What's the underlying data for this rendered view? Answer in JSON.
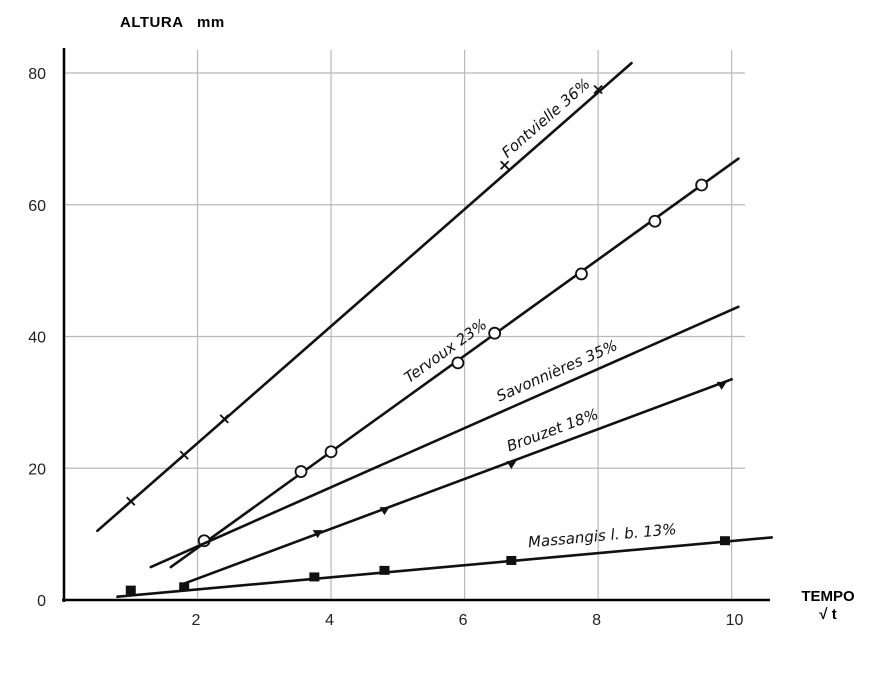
{
  "chart_data": {
    "type": "line",
    "ylabel": "ALTURA   mm",
    "xlabel_line1": "TEMPO",
    "xlabel_line2": "√ t",
    "xlim": [
      0,
      10.3
    ],
    "ylim": [
      0,
      83
    ],
    "x_ticks": [
      "2",
      "4",
      "6",
      "8",
      "10"
    ],
    "y_ticks": [
      "0",
      "20",
      "40",
      "60",
      "80"
    ],
    "grid": true,
    "series": [
      {
        "name": "Fontvielle 36%",
        "marker": "x",
        "line": [
          [
            0.5,
            10.5
          ],
          [
            8.5,
            81.5
          ]
        ],
        "points": [
          [
            1,
            15
          ],
          [
            1.8,
            22
          ],
          [
            2.4,
            27.5
          ],
          [
            6.6,
            66
          ],
          [
            8,
            77.5
          ]
        ]
      },
      {
        "name": "Tervoux 23%",
        "marker": "circle",
        "line": [
          [
            1.6,
            5
          ],
          [
            10.1,
            67
          ]
        ],
        "points": [
          [
            2.1,
            9
          ],
          [
            3.55,
            19.5
          ],
          [
            4,
            22.5
          ],
          [
            5.9,
            36
          ],
          [
            6.45,
            40.5
          ],
          [
            7.75,
            49.5
          ],
          [
            8.85,
            57.5
          ],
          [
            9.55,
            63
          ]
        ]
      },
      {
        "name": "Savonnières 35%",
        "marker": "none",
        "line": [
          [
            1.3,
            5
          ],
          [
            10.1,
            44.5
          ]
        ],
        "points": []
      },
      {
        "name": "Brouzet 18%",
        "marker": "triangle",
        "line": [
          [
            1.8,
            2.5
          ],
          [
            10,
            33.5
          ]
        ],
        "points": [
          [
            3.8,
            10
          ],
          [
            4.8,
            13.5
          ],
          [
            6.7,
            20.5
          ],
          [
            9.85,
            32.5
          ]
        ]
      },
      {
        "name": "Massangis l. b. 13%",
        "marker": "square",
        "line": [
          [
            0.8,
            0.5
          ],
          [
            10.6,
            9.5
          ]
        ],
        "points": [
          [
            1,
            1.5
          ],
          [
            1.8,
            2
          ],
          [
            3.75,
            3.5
          ],
          [
            4.8,
            4.5
          ],
          [
            6.7,
            6
          ],
          [
            9.9,
            9
          ]
        ]
      }
    ]
  }
}
